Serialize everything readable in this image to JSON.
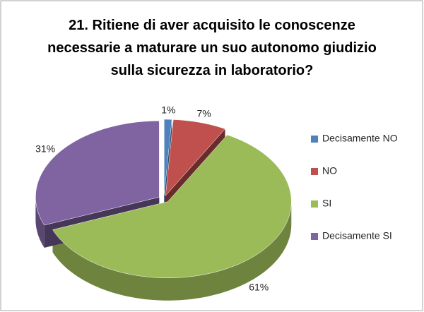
{
  "chart_data": {
    "type": "pie",
    "title": "21. Ritiene di aver acquisito le conoscenze necessarie a maturare un suo autonomo giudizio sulla sicurezza in laboratorio?",
    "categories": [
      "Decisamente NO",
      "NO",
      "SI",
      "Decisamente SI"
    ],
    "values": [
      1,
      7,
      61,
      31
    ],
    "value_labels": [
      "1%",
      "7%",
      "61%",
      "31%"
    ],
    "colors": [
      "#4f81bd",
      "#c0504d",
      "#9bbb59",
      "#8064a2"
    ],
    "legend": "right"
  }
}
